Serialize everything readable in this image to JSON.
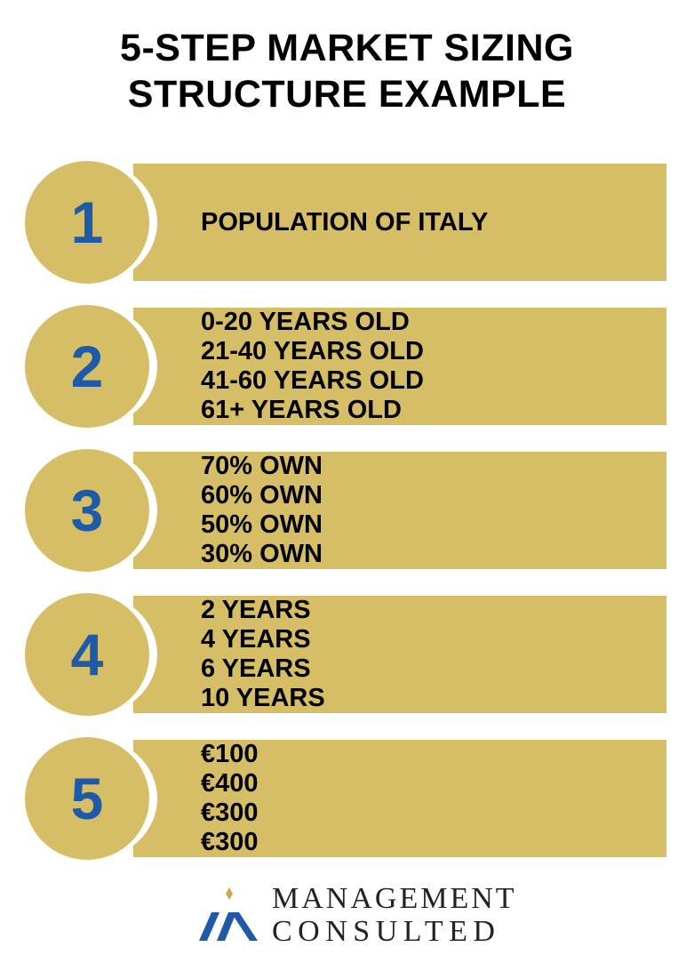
{
  "title": {
    "line1": "5-STEP MARKET SIZING",
    "line2": "STRUCTURE EXAMPLE"
  },
  "steps": [
    {
      "number": "1",
      "lines": [
        "POPULATION OF ITALY"
      ]
    },
    {
      "number": "2",
      "lines": [
        "0-20 YEARS OLD",
        "21-40 YEARS OLD",
        "41-60 YEARS OLD",
        "61+ YEARS OLD"
      ]
    },
    {
      "number": "3",
      "lines": [
        "70% OWN",
        "60% OWN",
        "50% OWN",
        "30% OWN"
      ]
    },
    {
      "number": "4",
      "lines": [
        "2 YEARS",
        "4 YEARS",
        "6 YEARS",
        "10 YEARS"
      ]
    },
    {
      "number": "5",
      "lines": [
        "€100",
        "€400",
        "€300",
        "€300"
      ]
    }
  ],
  "logo": {
    "line1": "MANAGEMENT",
    "line2": "CONSULTED",
    "icon": "management-consulted-logo-mark"
  },
  "colors": {
    "gold": "#d6be67",
    "blue": "#1d5aa8",
    "text": "#000000"
  }
}
